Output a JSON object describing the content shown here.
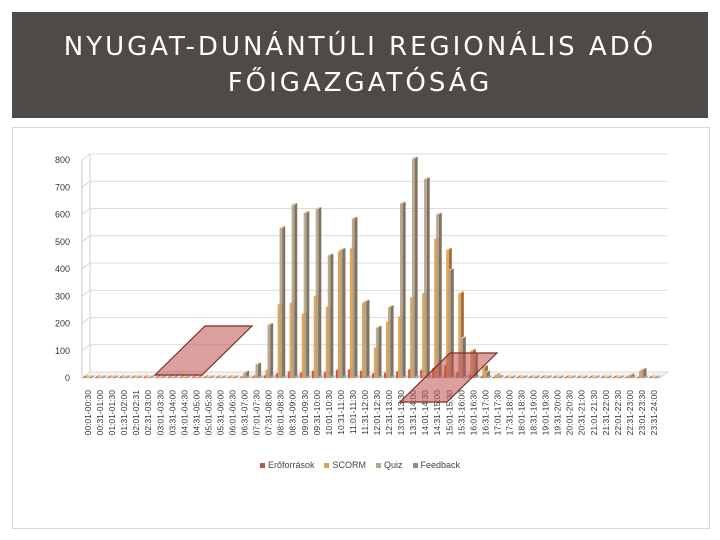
{
  "header": {
    "title_line1": "NYUGAT-DUNÁNTÚLI REGIONÁLIS ADÓ",
    "title_line2": "FŐIGAZGATÓSÁG"
  },
  "chart_data": {
    "type": "bar",
    "title": "",
    "xlabel": "",
    "ylabel": "",
    "ylim": [
      0,
      800
    ],
    "yticks": [
      0,
      100,
      200,
      300,
      400,
      500,
      600,
      700,
      800
    ],
    "grid": true,
    "legend_position": "bottom",
    "categories": [
      "00:01-00:30",
      "00:31-01:00",
      "01:01-01:30",
      "01:31-02:00",
      "02:01-02:31",
      "02:31-03:00",
      "03:01-03:30",
      "03:31-04:00",
      "04:01-04:30",
      "04:31-05:00",
      "05:01-05:30",
      "05:31-06:00",
      "06:01-06:30",
      "06:31-07:00",
      "07:01-07:30",
      "07:31-08:00",
      "08:01-08:30",
      "08:31-09:00",
      "09:01-09:30",
      "09:31-10:00",
      "10:01-10:30",
      "10:31-11:00",
      "11:01-11:30",
      "11:31-12:00",
      "12:01-12:30",
      "12:31-13:00",
      "13:01-13:30",
      "13:31-14:00",
      "14:01-14:30",
      "14:31-15:00",
      "15:01-15:30",
      "15:31-16:00",
      "16:01-16:30",
      "16:31-17:00",
      "17:01-17:30",
      "17:31-18:00",
      "18:01-18:30",
      "18:31-19:00",
      "19:01-19:30",
      "19:31-20:00",
      "20:01-20:30",
      "20:31-21:00",
      "21:01-21:30",
      "21:31-22:00",
      "22:01-22:30",
      "22:31-23:00",
      "23:01-23:30",
      "23:31-24:00"
    ],
    "series": [
      {
        "name": "Erőforrások",
        "color": "#c0504d",
        "values": [
          0,
          0,
          0,
          0,
          0,
          0,
          0,
          0,
          0,
          0,
          0,
          0,
          0,
          0,
          3,
          8,
          15,
          22,
          18,
          25,
          20,
          28,
          30,
          25,
          15,
          18,
          22,
          30,
          28,
          35,
          45,
          20,
          10,
          5,
          2,
          0,
          0,
          0,
          0,
          0,
          0,
          0,
          0,
          0,
          0,
          0,
          0,
          0
        ]
      },
      {
        "name": "SCORM",
        "color": "#e0a050",
        "values": [
          0,
          0,
          0,
          0,
          0,
          0,
          0,
          0,
          0,
          0,
          0,
          0,
          0,
          5,
          10,
          30,
          270,
          275,
          235,
          300,
          260,
          465,
          475,
          275,
          110,
          205,
          225,
          295,
          310,
          510,
          470,
          310,
          100,
          40,
          10,
          0,
          0,
          0,
          0,
          0,
          0,
          0,
          0,
          0,
          0,
          5,
          25,
          0
        ]
      },
      {
        "name": "Quiz",
        "color": "#b7a48a",
        "values": [
          0,
          0,
          0,
          0,
          0,
          0,
          0,
          0,
          0,
          0,
          0,
          0,
          0,
          20,
          50,
          195,
          550,
          635,
          605,
          620,
          450,
          470,
          585,
          280,
          185,
          260,
          640,
          805,
          730,
          600,
          395,
          145,
          85,
          20,
          5,
          0,
          0,
          0,
          0,
          0,
          0,
          0,
          0,
          0,
          0,
          10,
          30,
          0
        ]
      },
      {
        "name": "Feedback",
        "color": "#8c8c8c",
        "values": [
          0,
          0,
          0,
          0,
          0,
          0,
          0,
          0,
          0,
          0,
          0,
          0,
          0,
          0,
          0,
          0,
          0,
          0,
          0,
          0,
          0,
          0,
          0,
          0,
          0,
          0,
          0,
          0,
          0,
          0,
          0,
          0,
          0,
          0,
          0,
          0,
          0,
          0,
          0,
          0,
          0,
          0,
          0,
          0,
          0,
          0,
          0,
          0
        ]
      }
    ]
  },
  "annotations": {
    "highlight_color": "#c0504d"
  }
}
